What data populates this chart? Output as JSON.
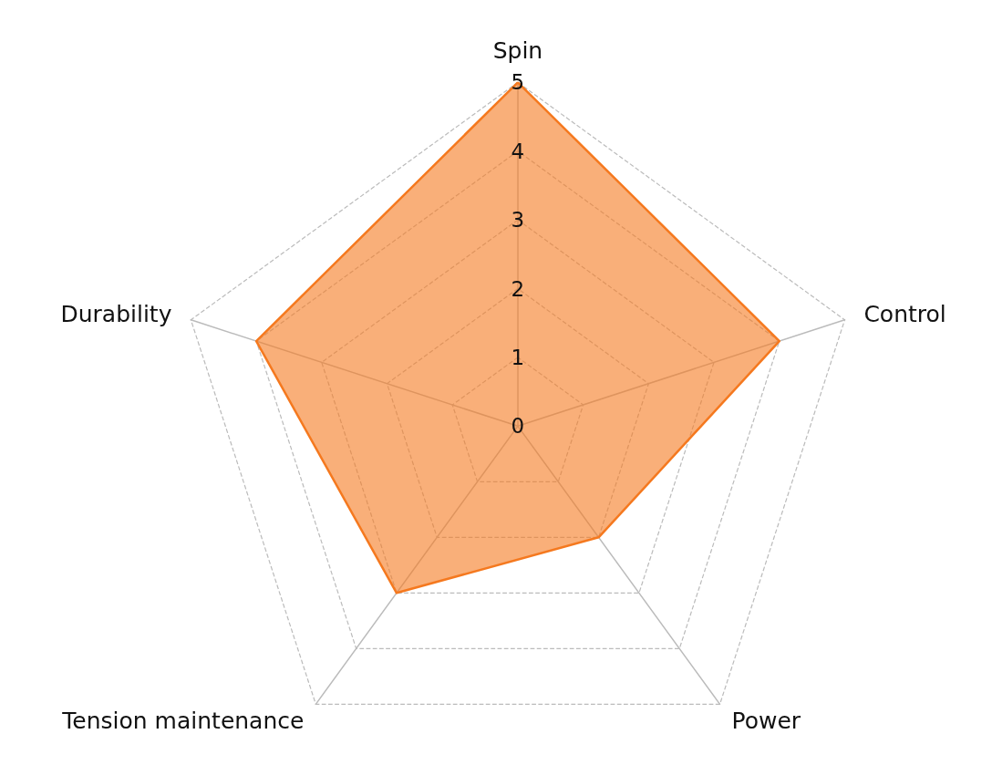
{
  "chart_data": {
    "type": "radar",
    "categories": [
      "Spin",
      "Control",
      "Power",
      "Tension maintenance",
      "Durability"
    ],
    "series": [
      {
        "color": "#f5791f",
        "values": [
          5,
          4,
          2,
          3,
          4
        ]
      }
    ],
    "ylim": [
      0,
      5
    ],
    "yticks": [
      0,
      1,
      2,
      3,
      4,
      5
    ],
    "grid": true,
    "marker": "none"
  }
}
